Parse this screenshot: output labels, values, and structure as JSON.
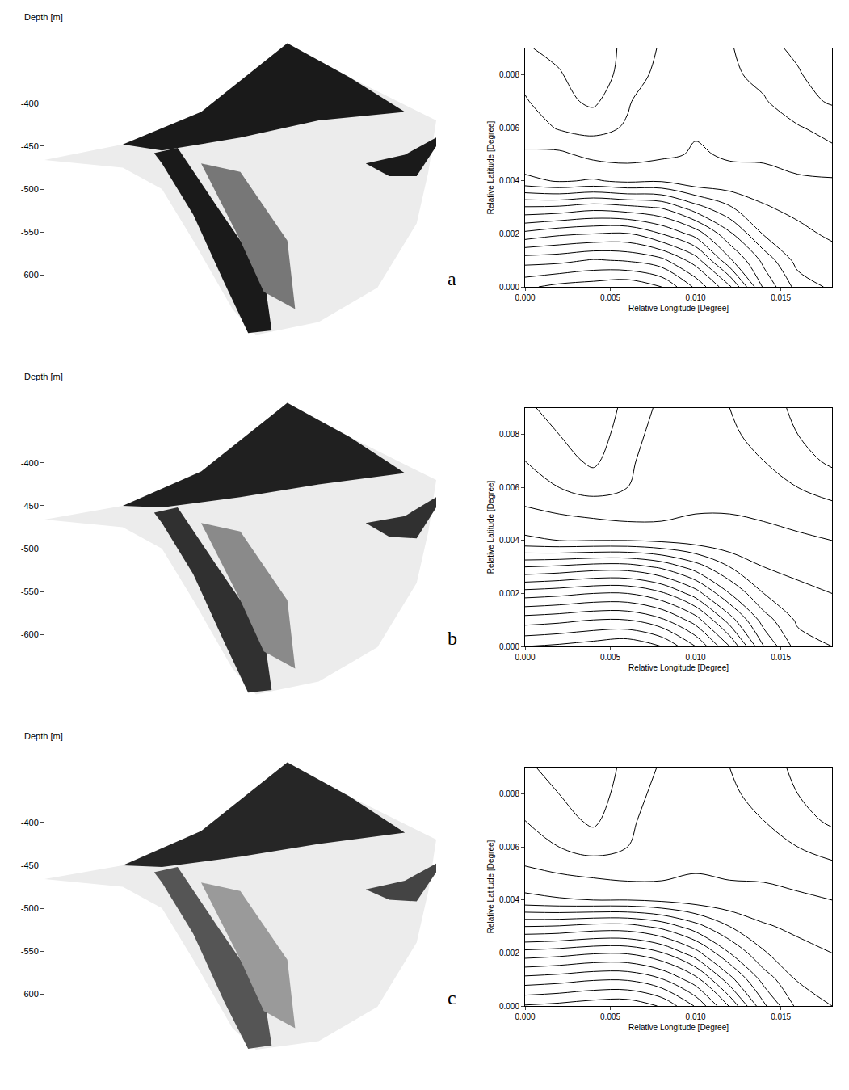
{
  "chart_data": [
    {
      "type": "area",
      "panel": "a",
      "y_label": "Depth [m]",
      "xlim": [
        0,
        100
      ],
      "ylim": [
        -680,
        -320
      ],
      "yticks": [
        -400,
        -450,
        -500,
        -550,
        -600
      ],
      "tick_labels": "y",
      "series": [
        {
          "color": "#ececec",
          "x": [
            0,
            20,
            40,
            62,
            78,
            100,
            98,
            95,
            85,
            70,
            54,
            48,
            38,
            30,
            20,
            0
          ],
          "values": [
            -466,
            -448,
            -410,
            -330,
            -370,
            -420,
            -480,
            -540,
            -615,
            -655,
            -670,
            -640,
            -560,
            -500,
            -475,
            -466
          ]
        },
        {
          "color": "#1a1a1a",
          "x": [
            20,
            40,
            62,
            78,
            92,
            70,
            50,
            30
          ],
          "values": [
            -448,
            -410,
            -330,
            -370,
            -410,
            -420,
            -440,
            -455
          ]
        },
        {
          "color": "#1a1a1a",
          "x": [
            28,
            34,
            44,
            56,
            58,
            52,
            46,
            38,
            30
          ],
          "values": [
            -458,
            -452,
            -520,
            -600,
            -665,
            -668,
            -610,
            -530,
            -470
          ]
        },
        {
          "color": "#1a1a1a",
          "x": [
            82,
            92,
            100,
            100,
            95,
            88
          ],
          "values": [
            -470,
            -460,
            -440,
            -450,
            -485,
            -485
          ]
        },
        {
          "color": "#777777",
          "x": [
            40,
            50,
            62,
            64,
            56,
            50
          ],
          "values": [
            -470,
            -480,
            -560,
            -640,
            -620,
            -560
          ]
        }
      ]
    },
    {
      "type": "contour",
      "x_label": "Relative Longitude [Degree]",
      "y_label": "Relative Latitude [Degree]",
      "xlim": [
        0,
        0.018
      ],
      "ylim": [
        0,
        0.009
      ],
      "xticks": [
        {
          "value": 0,
          "label": "0.000"
        },
        {
          "value": 0.005,
          "label": "0.005"
        },
        {
          "value": 0.01,
          "label": "0.010"
        },
        {
          "value": 0.015,
          "label": "0.015"
        }
      ],
      "yticks": [
        {
          "value": 0,
          "label": "0.000"
        },
        {
          "value": 0.002,
          "label": "0.002"
        },
        {
          "value": 0.004,
          "label": "0.004"
        },
        {
          "value": 0.006,
          "label": "0.006"
        },
        {
          "value": 0.008,
          "label": "0.008"
        }
      ],
      "levels": {
        "start": -600,
        "end": -420,
        "size": 10
      },
      "x": [
        0,
        0.002,
        0.004,
        0.006,
        0.008,
        0.01,
        0.012,
        0.014,
        0.016,
        0.018
      ],
      "y": [
        0,
        0.001,
        0.002,
        0.003,
        0.004,
        0.005,
        0.006,
        0.007,
        0.008,
        0.009
      ],
      "z": [
        [
          -588,
          -593,
          -595,
          -598,
          -590,
          -568,
          -542,
          -498,
          -476,
          -468
        ],
        [
          -566,
          -567,
          -571,
          -569,
          -563,
          -545,
          -512,
          -487,
          -466,
          -465
        ],
        [
          -533,
          -538,
          -540,
          -541,
          -530,
          -516,
          -492,
          -469,
          -463,
          -458
        ],
        [
          -501,
          -502,
          -506,
          -503,
          -499,
          -484,
          -471,
          -461,
          -457,
          -455
        ],
        [
          -463,
          -459,
          -461,
          -458,
          -459,
          -453,
          -453,
          -454,
          -451,
          -451
        ],
        [
          -451,
          -452,
          -447,
          -446,
          -448,
          -451,
          -449,
          -448,
          -447,
          -443
        ],
        [
          -446,
          -439,
          -437,
          -441,
          -445,
          -449,
          -446,
          -443,
          -441,
          -436
        ],
        [
          -441,
          -433,
          -428,
          -439,
          -447,
          -445,
          -443,
          -441,
          -433,
          -429
        ],
        [
          -437,
          -431,
          -423,
          -435,
          -443,
          -444,
          -442,
          -437,
          -431,
          -424
        ],
        [
          -431,
          -427,
          -421,
          -434,
          -441,
          -442,
          -441,
          -433,
          -428,
          -421
        ]
      ]
    },
    {
      "type": "area",
      "panel": "b",
      "y_label": "Depth [m]",
      "xlim": [
        0,
        100
      ],
      "ylim": [
        -680,
        -320
      ],
      "yticks": [
        -400,
        -450,
        -500,
        -550,
        -600
      ],
      "tick_labels": "y",
      "series": [
        {
          "color": "#ececec",
          "x": [
            0,
            20,
            40,
            62,
            78,
            100,
            98,
            95,
            85,
            70,
            54,
            48,
            38,
            30,
            20,
            0
          ],
          "values": [
            -466,
            -450,
            -410,
            -330,
            -370,
            -420,
            -480,
            -540,
            -615,
            -655,
            -670,
            -640,
            -560,
            -500,
            -475,
            -466
          ]
        },
        {
          "color": "#202020",
          "x": [
            20,
            40,
            62,
            78,
            92,
            70,
            50,
            30
          ],
          "values": [
            -450,
            -410,
            -330,
            -370,
            -412,
            -425,
            -440,
            -452
          ]
        },
        {
          "color": "#303030",
          "x": [
            28,
            34,
            44,
            56,
            58,
            52,
            46,
            38,
            30
          ],
          "values": [
            -458,
            -452,
            -520,
            -600,
            -665,
            -668,
            -610,
            -530,
            -470
          ]
        },
        {
          "color": "#303030",
          "x": [
            82,
            92,
            100,
            100,
            95,
            88
          ],
          "values": [
            -470,
            -462,
            -440,
            -452,
            -488,
            -486
          ]
        },
        {
          "color": "#8a8a8a",
          "x": [
            40,
            50,
            62,
            64,
            56,
            50
          ],
          "values": [
            -470,
            -480,
            -560,
            -640,
            -620,
            -560
          ]
        }
      ]
    },
    {
      "type": "contour",
      "x_label": "Relative Longitude [Degree]",
      "y_label": "Relative Latitude [Degree]",
      "xlim": [
        0,
        0.018
      ],
      "ylim": [
        0,
        0.009
      ],
      "xticks": [
        {
          "value": 0,
          "label": "0.000"
        },
        {
          "value": 0.005,
          "label": "0.005"
        },
        {
          "value": 0.01,
          "label": "0.010"
        },
        {
          "value": 0.015,
          "label": "0.015"
        }
      ],
      "yticks": [
        {
          "value": 0,
          "label": "0.000"
        },
        {
          "value": 0.002,
          "label": "0.002"
        },
        {
          "value": 0.004,
          "label": "0.004"
        },
        {
          "value": 0.006,
          "label": "0.006"
        },
        {
          "value": 0.008,
          "label": "0.008"
        }
      ],
      "levels": {
        "start": -600,
        "end": -420,
        "size": 10
      },
      "x": [
        0,
        0.002,
        0.004,
        0.006,
        0.008,
        0.01,
        0.012,
        0.014,
        0.016,
        0.018
      ],
      "y": [
        0,
        0.001,
        0.002,
        0.003,
        0.004,
        0.005,
        0.006,
        0.007,
        0.008,
        0.009
      ],
      "z": [
        [
          -590,
          -592,
          -595,
          -598,
          -590,
          -570,
          -540,
          -500,
          -475,
          -470
        ],
        [
          -565,
          -567,
          -570,
          -570,
          -562,
          -545,
          -515,
          -485,
          -468,
          -465
        ],
        [
          -535,
          -537,
          -540,
          -540,
          -532,
          -515,
          -490,
          -470,
          -462,
          -460
        ],
        [
          -500,
          -502,
          -505,
          -505,
          -498,
          -485,
          -470,
          -460,
          -458,
          -455
        ],
        [
          -462,
          -460,
          -460,
          -460,
          -458,
          -455,
          -452,
          -455,
          -452,
          -450
        ],
        [
          -452,
          -450,
          -448,
          -446,
          -447,
          -450,
          -450,
          -448,
          -446,
          -444
        ],
        [
          -445,
          -440,
          -436,
          -440,
          -446,
          -448,
          -446,
          -444,
          -440,
          -436
        ],
        [
          -440,
          -434,
          -428,
          -438,
          -446,
          -446,
          -444,
          -440,
          -434,
          -428
        ],
        [
          -436,
          -430,
          -424,
          -436,
          -444,
          -444,
          -442,
          -436,
          -430,
          -424
        ],
        [
          -432,
          -426,
          -420,
          -434,
          -442,
          -442,
          -440,
          -434,
          -428,
          -422
        ]
      ]
    },
    {
      "type": "area",
      "panel": "c",
      "y_label": "Depth [m]",
      "xlim": [
        0,
        100
      ],
      "ylim": [
        -680,
        -320
      ],
      "yticks": [
        -400,
        -450,
        -500,
        -550,
        -600
      ],
      "tick_labels": "y",
      "series": [
        {
          "color": "#ececec",
          "x": [
            0,
            20,
            40,
            62,
            78,
            100,
            98,
            95,
            85,
            70,
            54,
            48,
            38,
            30,
            20,
            0
          ],
          "values": [
            -466,
            -450,
            -410,
            -330,
            -370,
            -420,
            -480,
            -540,
            -615,
            -655,
            -665,
            -640,
            -560,
            -500,
            -475,
            -466
          ]
        },
        {
          "color": "#262626",
          "x": [
            20,
            40,
            62,
            78,
            92,
            70,
            50,
            30
          ],
          "values": [
            -450,
            -410,
            -330,
            -370,
            -412,
            -425,
            -440,
            -452
          ]
        },
        {
          "color": "#555555",
          "x": [
            28,
            34,
            44,
            56,
            58,
            52,
            46,
            38,
            30
          ],
          "values": [
            -458,
            -452,
            -520,
            -600,
            -660,
            -664,
            -610,
            -530,
            -470
          ]
        },
        {
          "color": "#444444",
          "x": [
            82,
            92,
            100,
            100,
            95,
            88
          ],
          "values": [
            -478,
            -468,
            -448,
            -458,
            -492,
            -490
          ]
        },
        {
          "color": "#9a9a9a",
          "x": [
            40,
            50,
            62,
            64,
            56,
            50
          ],
          "values": [
            -470,
            -480,
            -560,
            -640,
            -620,
            -560
          ]
        }
      ]
    },
    {
      "type": "contour",
      "x_label": "Relative Longitude [Degree]",
      "y_label": "Relative Latitude [Degree]",
      "xlim": [
        0,
        0.018
      ],
      "ylim": [
        0,
        0.009
      ],
      "xticks": [
        {
          "value": 0,
          "label": "0.000"
        },
        {
          "value": 0.005,
          "label": "0.005"
        },
        {
          "value": 0.01,
          "label": "0.010"
        },
        {
          "value": 0.015,
          "label": "0.015"
        }
      ],
      "yticks": [
        {
          "value": 0,
          "label": "0.000"
        },
        {
          "value": 0.002,
          "label": "0.002"
        },
        {
          "value": 0.004,
          "label": "0.004"
        },
        {
          "value": 0.006,
          "label": "0.006"
        },
        {
          "value": 0.008,
          "label": "0.008"
        }
      ],
      "levels": {
        "start": -600,
        "end": -420,
        "size": 10
      },
      "x": [
        0,
        0.002,
        0.004,
        0.006,
        0.008,
        0.01,
        0.012,
        0.014,
        0.016,
        0.018
      ],
      "y": [
        0,
        0.001,
        0.002,
        0.003,
        0.004,
        0.005,
        0.006,
        0.007,
        0.008,
        0.009
      ],
      "z": [
        [
          -591,
          -593,
          -596,
          -597,
          -589,
          -569,
          -539,
          -502,
          -477,
          -470
        ],
        [
          -564,
          -566,
          -569,
          -569,
          -561,
          -544,
          -514,
          -486,
          -469,
          -465
        ],
        [
          -534,
          -536,
          -539,
          -539,
          -531,
          -514,
          -490,
          -471,
          -463,
          -460
        ],
        [
          -500,
          -501,
          -504,
          -504,
          -497,
          -484,
          -470,
          -461,
          -458,
          -456
        ],
        [
          -463,
          -461,
          -460,
          -460,
          -458,
          -455,
          -453,
          -454,
          -452,
          -450
        ],
        [
          -452,
          -450,
          -448,
          -446,
          -447,
          -450,
          -449,
          -448,
          -446,
          -444
        ],
        [
          -445,
          -440,
          -436,
          -440,
          -446,
          -447,
          -446,
          -444,
          -440,
          -436
        ],
        [
          -440,
          -434,
          -428,
          -438,
          -445,
          -446,
          -444,
          -440,
          -434,
          -428
        ],
        [
          -436,
          -430,
          -424,
          -436,
          -443,
          -444,
          -442,
          -436,
          -430,
          -424
        ],
        [
          -432,
          -426,
          -421,
          -434,
          -441,
          -442,
          -440,
          -434,
          -428,
          -422
        ]
      ]
    }
  ]
}
